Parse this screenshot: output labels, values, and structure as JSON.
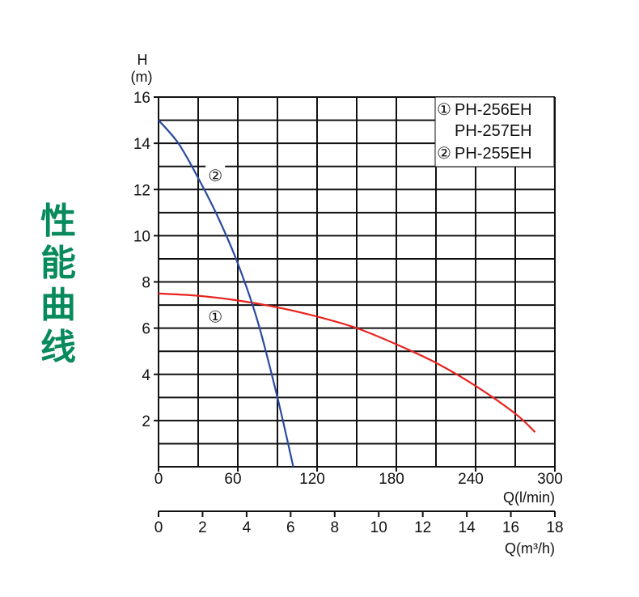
{
  "side_title": [
    "性",
    "能",
    "曲",
    "线"
  ],
  "colors": {
    "curve1": "#e8231f",
    "curve2": "#2b4aa0",
    "grid": "#111111",
    "side_title": "#078a5c"
  },
  "chart_data": {
    "type": "line",
    "y_axis": {
      "label_top": "H",
      "label_bottom": "(m)",
      "range": [
        0,
        16
      ],
      "ticks": [
        2,
        4,
        6,
        8,
        10,
        12,
        14,
        16
      ],
      "minor_step": 1
    },
    "x_axis": {
      "label": "Q(l/min)",
      "range": [
        0,
        300
      ],
      "ticks": [
        0,
        60,
        120,
        180,
        240,
        300
      ],
      "minor_step": 30
    },
    "x_axis_secondary": {
      "label": "Q(m³/h)",
      "range": [
        0,
        18
      ],
      "ticks": [
        0,
        2,
        4,
        6,
        8,
        10,
        12,
        14,
        16,
        18
      ]
    },
    "grid": true,
    "legend": {
      "placement": "top-right",
      "entries": [
        {
          "marker": "①",
          "text": "PH-256EH"
        },
        {
          "marker": "",
          "text": "PH-257EH"
        },
        {
          "marker": "②",
          "text": "PH-255EH"
        }
      ]
    },
    "series": [
      {
        "label": "①",
        "color": "#e8231f",
        "x": [
          0,
          30,
          60,
          90,
          120,
          150,
          180,
          210,
          240,
          270,
          285
        ],
        "y": [
          7.5,
          7.4,
          7.2,
          6.9,
          6.5,
          6.0,
          5.3,
          4.5,
          3.5,
          2.3,
          1.5
        ]
      },
      {
        "label": "②",
        "color": "#2b4aa0",
        "x": [
          0,
          15,
          30,
          45,
          60,
          75,
          90,
          102
        ],
        "y": [
          15.0,
          14.0,
          12.5,
          10.8,
          8.8,
          6.3,
          3.0,
          0
        ]
      }
    ],
    "curve_labels": [
      {
        "text": "①",
        "x": 43,
        "y": 6.5
      },
      {
        "text": "②",
        "x": 43,
        "y": 12.6
      }
    ]
  }
}
